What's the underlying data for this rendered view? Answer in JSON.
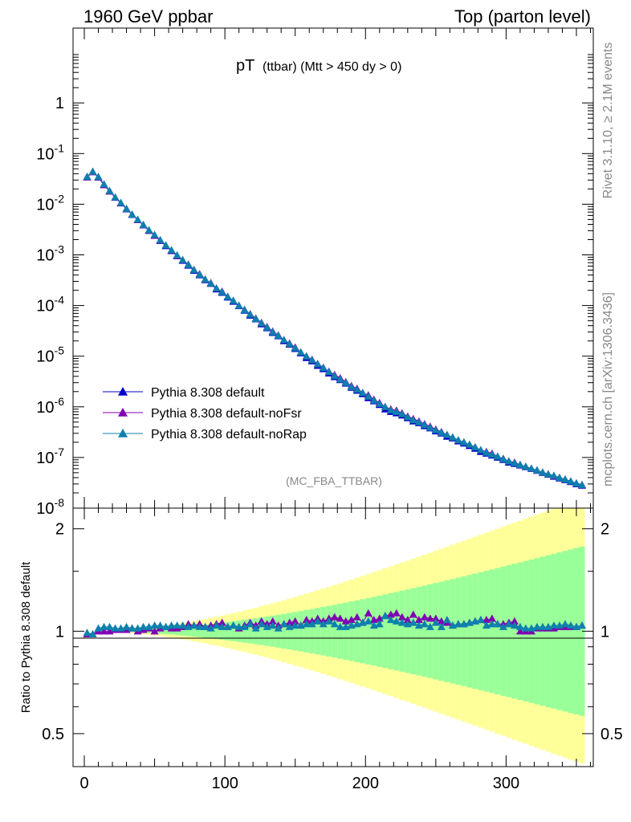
{
  "header": {
    "left": "1960 GeV ppbar",
    "right": "Top (parton level)"
  },
  "plot_title": {
    "main": "pT",
    "sub": "(ttbar) (Mtt > 450 dy > 0)"
  },
  "watermark": "(MC_FBA_TTBAR)",
  "side_text": {
    "top": "Rivet 3.1.10, ≥ 2.1M events",
    "bottom": "mcplots.cern.ch [arXiv:1306.3436]"
  },
  "ratio_ylabel": "Ratio to Pythia 8.308 default",
  "colors": {
    "default": "#0000cc",
    "noFsr": "#7f00b2",
    "noRap": "#0e80ad",
    "band_yellow": "#ffff99",
    "band_green": "#99ff99"
  },
  "chart_data": [
    {
      "type": "line",
      "panel": "main",
      "xlim": [
        -8,
        362
      ],
      "ylim": [
        1e-08,
        30
      ],
      "yscale": "log",
      "ytick_labels": [
        "1",
        "10^-1",
        "10^-2",
        "10^-3",
        "10^-4",
        "10^-5",
        "10^-6",
        "10^-7",
        "10^-8"
      ],
      "legend_placement": "lower-left",
      "legend": [
        "Pythia 8.308 default",
        "Pythia 8.308 default-noFsr",
        "Pythia 8.308 default-noRap"
      ],
      "x": [
        2,
        6,
        10,
        14,
        18,
        22,
        26,
        30,
        34,
        38,
        42,
        46,
        50,
        54,
        58,
        62,
        66,
        70,
        74,
        78,
        82,
        86,
        90,
        94,
        98,
        102,
        106,
        110,
        114,
        118,
        122,
        126,
        130,
        134,
        138,
        142,
        146,
        150,
        154,
        158,
        162,
        166,
        170,
        174,
        178,
        182,
        186,
        190,
        194,
        198,
        202,
        206,
        210,
        214,
        218,
        222,
        226,
        230,
        234,
        238,
        242,
        246,
        250,
        254,
        258,
        262,
        266,
        270,
        274,
        278,
        282,
        286,
        290,
        294,
        298,
        302,
        306,
        310,
        314,
        318,
        322,
        326,
        330,
        334,
        338,
        342,
        346,
        350,
        354
      ],
      "series": [
        {
          "name": "Pythia 8.308 default",
          "values": [
            0.035,
            0.044,
            0.034,
            0.024,
            0.018,
            0.0135,
            0.0105,
            0.008,
            0.0062,
            0.0049,
            0.00385,
            0.003,
            0.0024,
            0.0019,
            0.0015,
            0.0012,
            0.00095,
            0.00077,
            0.00062,
            0.00049,
            0.0004,
            0.00032,
            0.00027,
            0.00021,
            0.00018,
            0.000145,
            0.00012,
            9.8e-05,
            8e-05,
            6.4e-05,
            5.4e-05,
            4.3e-05,
            3.6e-05,
            2.9e-05,
            2.5e-05,
            2e-05,
            1.7e-05,
            1.4e-05,
            1.15e-05,
            9.3e-06,
            8e-06,
            6.5e-06,
            5.6e-06,
            4.6e-06,
            3.9e-06,
            3.4e-06,
            2.9e-06,
            2.4e-06,
            2.1e-06,
            1.8e-06,
            1.5e-06,
            1.3e-06,
            1.1e-06,
            9e-07,
            8e-07,
            7.5e-07,
            6.8e-07,
            6e-07,
            5.2e-07,
            4.8e-07,
            4.2e-07,
            3.8e-07,
            3.3e-07,
            3e-07,
            2.6e-07,
            2.4e-07,
            2.1e-07,
            1.9e-07,
            1.7e-07,
            1.5e-07,
            1.3e-07,
            1.2e-07,
            1.1e-07,
            1e-07,
            9e-08,
            8e-08,
            7.5e-08,
            7e-08,
            6.5e-08,
            6e-08,
            5.5e-08,
            5e-08,
            4.6e-08,
            4.2e-08,
            3.9e-08,
            3.6e-08,
            3.3e-08,
            3e-08,
            2.8e-08
          ]
        },
        {
          "name": "Pythia 8.308 default-noFsr",
          "values": [
            0.034,
            0.043,
            0.034,
            0.024,
            0.018,
            0.0136,
            0.0106,
            0.0081,
            0.0063,
            0.0049,
            0.0039,
            0.00305,
            0.0024,
            0.00195,
            0.00155,
            0.00122,
            0.00097,
            0.00079,
            0.00065,
            0.00051,
            0.00042,
            0.00033,
            0.00028,
            0.00022,
            0.00019,
            0.00015,
            0.000125,
            0.0001,
            8.3e-05,
            6.8e-05,
            5.6e-05,
            4.6e-05,
            3.8e-05,
            3.1e-05,
            2.6e-05,
            2.1e-05,
            1.8e-05,
            1.5e-05,
            1.2e-05,
            1e-05,
            8.6e-06,
            7.1e-06,
            6e-06,
            5e-06,
            4.3e-06,
            3.7e-06,
            3.1e-06,
            2.6e-06,
            2.3e-06,
            1.9e-06,
            1.7e-06,
            1.4e-06,
            1.2e-06,
            1e-06,
            9e-07,
            8.5e-07,
            7.5e-07,
            6.5e-07,
            5.8e-07,
            5.2e-07,
            4.6e-07,
            4.1e-07,
            3.6e-07,
            3.2e-07,
            2.8e-07,
            2.5e-07,
            2.2e-07,
            2e-07,
            1.8e-07,
            1.6e-07,
            1.4e-07,
            1.3e-07,
            1.2e-07,
            1.05e-07,
            9.5e-08,
            8.5e-08,
            8e-08,
            7.2e-08,
            6.6e-08,
            6e-08,
            5.6e-08,
            5.1e-08,
            4.7e-08,
            4.3e-08,
            4e-08,
            3.7e-08,
            3.4e-08,
            3.1e-08,
            2.9e-08
          ]
        },
        {
          "name": "Pythia 8.308 default-noRap",
          "values": [
            0.035,
            0.044,
            0.035,
            0.025,
            0.0185,
            0.0138,
            0.0107,
            0.0082,
            0.0063,
            0.005,
            0.00395,
            0.0031,
            0.0025,
            0.00198,
            0.00155,
            0.00125,
            0.00099,
            0.0008,
            0.00064,
            0.00051,
            0.00041,
            0.00033,
            0.000275,
            0.00022,
            0.000185,
            0.00015,
            0.000125,
            0.0001,
            8.2e-05,
            6.7e-05,
            5.5e-05,
            4.5e-05,
            3.7e-05,
            3e-05,
            2.55e-05,
            2.1e-05,
            1.75e-05,
            1.45e-05,
            1.2e-05,
            1e-05,
            8.4e-06,
            7e-06,
            5.9e-06,
            4.9e-06,
            4.1e-06,
            3.5e-06,
            3e-06,
            2.5e-06,
            2.2e-06,
            1.9e-06,
            1.6e-06,
            1.35e-06,
            1.15e-06,
            1e-06,
            8.6e-07,
            8e-07,
            7.2e-07,
            6.3e-07,
            5.5e-07,
            5e-07,
            4.4e-07,
            3.9e-07,
            3.5e-07,
            3.1e-07,
            2.8e-07,
            2.5e-07,
            2.2e-07,
            2e-07,
            1.8e-07,
            1.6e-07,
            1.4e-07,
            1.25e-07,
            1.15e-07,
            1.05e-07,
            9.3e-08,
            8.4e-08,
            7.8e-08,
            7.2e-08,
            6.6e-08,
            6.1e-08,
            5.6e-08,
            5.1e-08,
            4.7e-08,
            4.4e-08,
            4e-08,
            3.7e-08,
            3.4e-08,
            3.1e-08,
            2.9e-08
          ]
        }
      ]
    },
    {
      "type": "line",
      "panel": "ratio",
      "xlim": [
        -8,
        362
      ],
      "ylim": [
        0.4,
        2.3
      ],
      "yscale": "log",
      "ytick_labels": [
        "0.5",
        "1",
        "2"
      ],
      "xtick_labels": [
        "0",
        "100",
        "200",
        "300"
      ],
      "x": [
        2,
        6,
        10,
        14,
        18,
        22,
        26,
        30,
        34,
        38,
        42,
        46,
        50,
        54,
        58,
        62,
        66,
        70,
        74,
        78,
        82,
        86,
        90,
        94,
        98,
        102,
        106,
        110,
        114,
        118,
        122,
        126,
        130,
        134,
        138,
        142,
        146,
        150,
        154,
        158,
        162,
        166,
        170,
        174,
        178,
        182,
        186,
        190,
        194,
        198,
        202,
        206,
        210,
        214,
        218,
        222,
        226,
        230,
        234,
        238,
        242,
        246,
        250,
        254,
        258,
        262,
        266,
        270,
        274,
        278,
        282,
        286,
        290,
        294,
        298,
        302,
        306,
        310,
        314,
        318,
        322,
        326,
        330,
        334,
        338,
        342,
        346,
        350,
        354
      ],
      "series": [
        {
          "name": "Pythia 8.308 default-noFsr",
          "values": [
            0.98,
            0.98,
            1.0,
            1.0,
            1.0,
            1.01,
            1.01,
            1.01,
            1.02,
            1.0,
            1.01,
            1.02,
            1.0,
            1.02,
            1.03,
            1.02,
            1.02,
            1.03,
            1.05,
            1.04,
            1.05,
            1.03,
            1.04,
            1.05,
            1.06,
            1.03,
            1.04,
            1.02,
            1.04,
            1.06,
            1.04,
            1.07,
            1.05,
            1.07,
            1.04,
            1.05,
            1.06,
            1.07,
            1.04,
            1.08,
            1.07,
            1.09,
            1.07,
            1.09,
            1.1,
            1.09,
            1.07,
            1.08,
            1.1,
            1.06,
            1.13,
            1.08,
            1.09,
            1.11,
            1.12,
            1.13,
            1.1,
            1.08,
            1.12,
            1.08,
            1.1,
            1.09,
            1.09,
            1.07,
            1.06,
            1.04,
            1.05,
            1.05,
            1.06,
            1.07,
            1.08,
            1.08,
            1.09,
            1.05,
            1.05,
            1.06,
            1.07,
            1.0,
            1.0,
            1.0,
            1.02,
            1.02,
            1.02,
            1.02,
            1.03,
            1.03,
            1.03,
            1.03,
            1.04
          ]
        },
        {
          "name": "Pythia 8.308 default-noRap",
          "values": [
            0.99,
            0.98,
            1.02,
            1.03,
            1.03,
            1.02,
            1.02,
            1.03,
            1.02,
            1.02,
            1.03,
            1.03,
            1.04,
            1.04,
            1.03,
            1.04,
            1.04,
            1.04,
            1.03,
            1.04,
            1.03,
            1.03,
            1.02,
            1.04,
            1.03,
            1.03,
            1.04,
            1.03,
            1.03,
            1.05,
            1.02,
            1.05,
            1.03,
            1.04,
            1.02,
            1.05,
            1.03,
            1.04,
            1.04,
            1.05,
            1.05,
            1.07,
            1.05,
            1.07,
            1.05,
            1.03,
            1.03,
            1.04,
            1.05,
            1.06,
            1.07,
            1.04,
            1.05,
            1.11,
            1.08,
            1.07,
            1.06,
            1.05,
            1.06,
            1.04,
            1.05,
            1.03,
            1.06,
            1.03,
            1.08,
            1.04,
            1.05,
            1.05,
            1.06,
            1.07,
            1.08,
            1.04,
            1.05,
            1.05,
            1.03,
            1.05,
            1.04,
            1.03,
            1.02,
            1.02,
            1.03,
            1.03,
            1.03,
            1.04,
            1.04,
            1.05,
            1.04,
            1.03,
            1.04
          ]
        }
      ]
    }
  ]
}
